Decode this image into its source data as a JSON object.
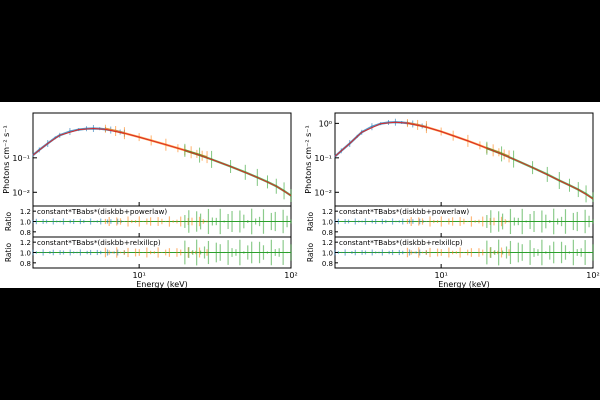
{
  "chart_data": [
    {
      "type": "line",
      "panel": "left",
      "ylabel": "Photons cm⁻² s⁻¹",
      "ratio_ylabel": "Ratio",
      "xlabel": "Energy (keV)",
      "x_scale": "log",
      "y_scale": "log",
      "xlim": [
        2,
        100
      ],
      "ylim": [
        0.004,
        2.0
      ],
      "x_ticks": [
        {
          "v": 10,
          "label": "10¹"
        },
        {
          "v": 100,
          "label": "10²"
        }
      ],
      "y_ticks": [
        {
          "v": 0.01,
          "label": "10⁻²"
        },
        {
          "v": 0.1,
          "label": "10⁻¹"
        }
      ],
      "ratio_ylim": [
        0.7,
        1.3
      ],
      "ratio_ticks": [
        "1.2",
        "1.0",
        "0.8"
      ],
      "series": [
        {
          "color": "#1f77b4",
          "x": [
            2,
            2.2,
            2.5,
            2.8,
            3.0,
            3.5,
            4.0,
            4.5,
            5.0,
            5.5,
            6.0,
            6.5,
            7.0,
            7.5,
            8.0
          ],
          "y": [
            0.12,
            0.17,
            0.26,
            0.38,
            0.45,
            0.58,
            0.66,
            0.7,
            0.71,
            0.7,
            0.67,
            0.64,
            0.6,
            0.56,
            0.52
          ]
        },
        {
          "color": "#ff7f0e",
          "x": [
            6,
            7,
            8,
            10,
            12,
            15,
            18,
            20,
            22,
            24,
            26,
            28
          ],
          "y": [
            0.7,
            0.6,
            0.52,
            0.4,
            0.32,
            0.24,
            0.19,
            0.165,
            0.145,
            0.13,
            0.115,
            0.105
          ]
        },
        {
          "color": "#2ca02c",
          "x": [
            20,
            25,
            30,
            40,
            50,
            60,
            70,
            80,
            90,
            100
          ],
          "y": [
            0.165,
            0.12,
            0.09,
            0.056,
            0.038,
            0.027,
            0.02,
            0.015,
            0.011,
            0.008
          ]
        }
      ],
      "model": {
        "color": "#d62728",
        "x": [
          2,
          2.5,
          3,
          4,
          5,
          6,
          8,
          10,
          15,
          20,
          30,
          40,
          60,
          80,
          100
        ],
        "y": [
          0.12,
          0.26,
          0.45,
          0.66,
          0.71,
          0.67,
          0.52,
          0.4,
          0.24,
          0.165,
          0.09,
          0.056,
          0.027,
          0.015,
          0.008
        ]
      },
      "ratios": [
        {
          "label": "constant*TBabs*(diskbb+powerlaw)"
        },
        {
          "label": "constant*TBabs*(diskbb+relxillcp)"
        }
      ]
    },
    {
      "type": "line",
      "panel": "right",
      "ylabel": "Photons cm⁻² s⁻¹",
      "ratio_ylabel": "Ratio",
      "xlabel": "Energy (keV)",
      "x_scale": "log",
      "y_scale": "log",
      "xlim": [
        2,
        100
      ],
      "ylim": [
        0.004,
        2.0
      ],
      "x_ticks": [
        {
          "v": 10,
          "label": "10¹"
        },
        {
          "v": 100,
          "label": "10²"
        }
      ],
      "y_ticks": [
        {
          "v": 0.01,
          "label": "10⁻²"
        },
        {
          "v": 0.1,
          "label": "10⁻¹"
        },
        {
          "v": 1,
          "label": "10⁰"
        }
      ],
      "ratio_ylim": [
        0.7,
        1.3
      ],
      "ratio_ticks": [
        "1.2",
        "1.0",
        "0.8"
      ],
      "series": [
        {
          "color": "#1f77b4",
          "x": [
            2,
            2.2,
            2.5,
            2.8,
            3.0,
            3.5,
            4.0,
            4.5,
            5.0,
            5.5,
            6.0,
            6.5,
            7.0,
            7.5,
            8.0
          ],
          "y": [
            0.11,
            0.16,
            0.26,
            0.42,
            0.55,
            0.8,
            0.98,
            1.06,
            1.08,
            1.06,
            1.02,
            0.96,
            0.9,
            0.84,
            0.78
          ]
        },
        {
          "color": "#ff7f0e",
          "x": [
            6,
            7,
            8,
            10,
            12,
            15,
            18,
            20,
            22,
            24,
            26,
            28
          ],
          "y": [
            1.02,
            0.9,
            0.78,
            0.58,
            0.44,
            0.31,
            0.23,
            0.19,
            0.165,
            0.145,
            0.125,
            0.11
          ]
        },
        {
          "color": "#2ca02c",
          "x": [
            20,
            25,
            30,
            40,
            50,
            60,
            70,
            80,
            90,
            100
          ],
          "y": [
            0.19,
            0.13,
            0.092,
            0.052,
            0.033,
            0.022,
            0.016,
            0.012,
            0.009,
            0.0065
          ]
        }
      ],
      "model": {
        "color": "#d62728",
        "x": [
          2,
          2.5,
          3,
          4,
          5,
          6,
          8,
          10,
          15,
          20,
          30,
          40,
          60,
          80,
          100
        ],
        "y": [
          0.11,
          0.26,
          0.55,
          0.98,
          1.08,
          1.02,
          0.78,
          0.58,
          0.31,
          0.19,
          0.092,
          0.052,
          0.022,
          0.012,
          0.0065
        ]
      },
      "ratios": [
        {
          "label": "constant*TBabs*(diskbb+powerlaw)"
        },
        {
          "label": "constant*TBabs*(diskbb+relxillcp)"
        }
      ]
    }
  ]
}
